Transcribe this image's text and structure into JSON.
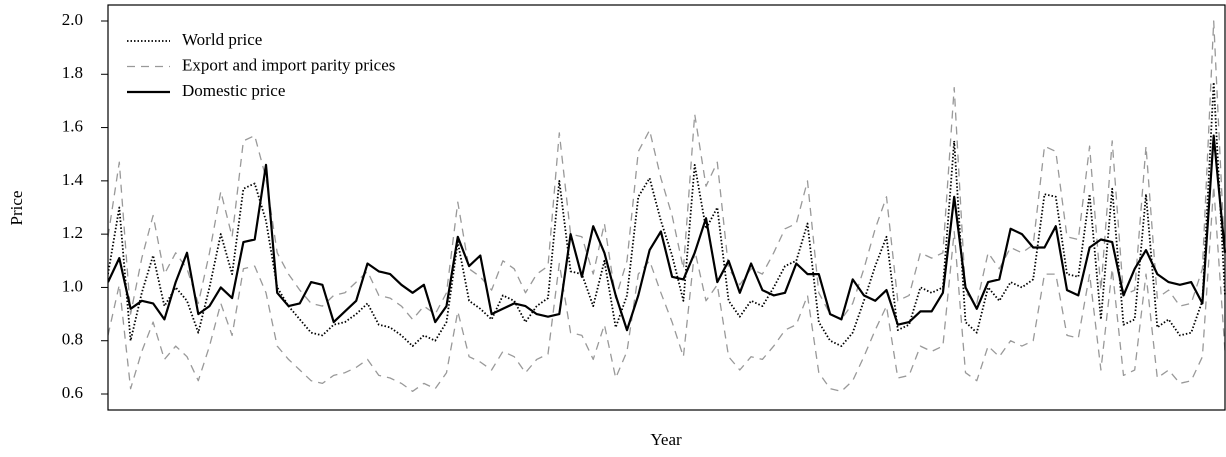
{
  "chart_data": {
    "type": "line",
    "y_label": "Price",
    "x_label": "Year",
    "ylim": [
      0.54,
      2.06
    ],
    "yticks": [
      0.6,
      0.8,
      {
        "value": 1,
        "label": "1.0"
      },
      1.2,
      1.4,
      1.6,
      1.8,
      {
        "value": 2,
        "label": "2.0"
      }
    ],
    "legend": "top-left",
    "categories": [
      null,
      null,
      null,
      null,
      null,
      null,
      null,
      null,
      null,
      null,
      null,
      null,
      null,
      null,
      null,
      null,
      null,
      null,
      null,
      null,
      null,
      null,
      null,
      null,
      null,
      null,
      null,
      null,
      null,
      null,
      null,
      null,
      null,
      null,
      null,
      null,
      null,
      null,
      null,
      null,
      null,
      null,
      null,
      null,
      null,
      null,
      null,
      null,
      null,
      null,
      null,
      null,
      null,
      null,
      null,
      null,
      null,
      null,
      null,
      null,
      null,
      null,
      null,
      null,
      null,
      null,
      null,
      null,
      null,
      null,
      null,
      null,
      null,
      null,
      null,
      null,
      null,
      null,
      null,
      null,
      null,
      null,
      null,
      null,
      null,
      null,
      null,
      null,
      null,
      null,
      null,
      null,
      null,
      null,
      null,
      null,
      null,
      null,
      null,
      null
    ],
    "series": [
      {
        "name": "World price",
        "color": "#000000",
        "dash": "dotted",
        "values": [
          1.05,
          1.3,
          0.8,
          0.98,
          1.12,
          0.93,
          1.0,
          0.95,
          0.83,
          1.0,
          1.2,
          1.05,
          1.37,
          1.39,
          1.25,
          1.0,
          0.93,
          0.88,
          0.83,
          0.82,
          0.86,
          0.87,
          0.9,
          0.94,
          0.86,
          0.85,
          0.82,
          0.78,
          0.82,
          0.8,
          0.87,
          1.17,
          0.95,
          0.92,
          0.88,
          0.97,
          0.95,
          0.87,
          0.93,
          0.96,
          1.4,
          1.06,
          1.05,
          0.93,
          1.1,
          0.85,
          0.97,
          1.34,
          1.41,
          1.25,
          1.12,
          0.95,
          1.46,
          1.22,
          1.3,
          0.95,
          0.89,
          0.95,
          0.93,
          1.0,
          1.08,
          1.1,
          1.24,
          0.87,
          0.8,
          0.78,
          0.83,
          0.95,
          1.08,
          1.19,
          0.84,
          0.86,
          1.0,
          0.98,
          1.0,
          1.55,
          0.87,
          0.83,
          1.0,
          0.95,
          1.02,
          1.0,
          1.03,
          1.35,
          1.34,
          1.05,
          1.04,
          1.35,
          0.88,
          1.37,
          0.86,
          0.88,
          1.35,
          0.85,
          0.88,
          0.82,
          0.83,
          0.95,
          1.77,
          0.97
        ]
      },
      {
        "name": "Export and import parity prices",
        "color": "#999999",
        "dash": "dashed",
        "values": [
          1.19,
          1.47,
          0.9,
          1.11,
          1.27,
          1.05,
          1.13,
          1.07,
          0.94,
          1.13,
          1.36,
          1.19,
          1.55,
          1.57,
          1.41,
          1.13,
          1.05,
          0.99,
          0.94,
          0.93,
          0.97,
          0.98,
          1.02,
          1.06,
          0.97,
          0.96,
          0.93,
          0.88,
          0.93,
          0.9,
          0.98,
          1.32,
          1.07,
          1.04,
          0.99,
          1.1,
          1.07,
          0.98,
          1.05,
          1.08,
          1.58,
          1.2,
          1.19,
          1.05,
          1.24,
          0.96,
          1.1,
          1.51,
          1.59,
          1.41,
          1.27,
          1.07,
          1.65,
          1.38,
          1.47,
          1.07,
          1.01,
          1.07,
          1.05,
          1.13,
          1.22,
          1.24,
          1.4,
          0.98,
          0.9,
          0.88,
          0.94,
          1.07,
          1.22,
          1.34,
          0.95,
          0.97,
          1.13,
          1.11,
          1.13,
          1.75,
          0.98,
          0.94,
          1.13,
          1.07,
          1.15,
          1.13,
          1.16,
          1.53,
          1.51,
          1.19,
          1.18,
          1.53,
          0.99,
          1.55,
          0.97,
          0.99,
          1.53,
          0.96,
          0.99,
          0.93,
          0.94,
          1.07,
          2.0,
          1.1
        ]
      },
      {
        "color": "#999999",
        "dash": "dashed",
        "values": [
          0.82,
          1.01,
          0.62,
          0.76,
          0.87,
          0.73,
          0.78,
          0.74,
          0.65,
          0.78,
          0.94,
          0.82,
          1.07,
          1.08,
          0.98,
          0.78,
          0.73,
          0.69,
          0.65,
          0.64,
          0.67,
          0.68,
          0.7,
          0.73,
          0.67,
          0.66,
          0.64,
          0.61,
          0.64,
          0.62,
          0.68,
          0.91,
          0.74,
          0.72,
          0.69,
          0.76,
          0.74,
          0.68,
          0.73,
          0.75,
          1.09,
          0.83,
          0.82,
          0.73,
          0.86,
          0.66,
          0.76,
          1.05,
          1.1,
          0.98,
          0.87,
          0.74,
          1.14,
          0.95,
          1.01,
          0.74,
          0.69,
          0.74,
          0.73,
          0.78,
          0.84,
          0.86,
          0.97,
          0.68,
          0.62,
          0.61,
          0.65,
          0.74,
          0.84,
          0.93,
          0.66,
          0.67,
          0.78,
          0.76,
          0.78,
          1.21,
          0.68,
          0.65,
          0.78,
          0.74,
          0.8,
          0.78,
          0.8,
          1.05,
          1.05,
          0.82,
          0.81,
          1.05,
          0.69,
          1.07,
          0.67,
          0.69,
          1.05,
          0.66,
          0.69,
          0.64,
          0.65,
          0.74,
          1.38,
          0.76
        ]
      },
      {
        "name": "Domestic price",
        "color": "#000000",
        "dash": "solid",
        "values": [
          1.02,
          1.11,
          0.92,
          0.95,
          0.94,
          0.88,
          1.02,
          1.13,
          0.9,
          0.93,
          1.0,
          0.96,
          1.17,
          1.18,
          1.46,
          0.98,
          0.93,
          0.94,
          1.02,
          1.01,
          0.87,
          0.91,
          0.95,
          1.09,
          1.06,
          1.05,
          1.01,
          0.98,
          1.01,
          0.87,
          0.93,
          1.19,
          1.08,
          1.12,
          0.9,
          0.92,
          0.94,
          0.93,
          0.9,
          0.89,
          0.9,
          1.2,
          1.04,
          1.23,
          1.13,
          0.97,
          0.84,
          0.97,
          1.14,
          1.21,
          1.04,
          1.03,
          1.13,
          1.26,
          1.02,
          1.1,
          0.98,
          1.09,
          0.99,
          0.97,
          0.98,
          1.09,
          1.05,
          1.05,
          0.9,
          0.88,
          1.03,
          0.97,
          0.95,
          0.99,
          0.86,
          0.87,
          0.91,
          0.91,
          0.98,
          1.34,
          1.0,
          0.92,
          1.02,
          1.03,
          1.22,
          1.2,
          1.15,
          1.15,
          1.23,
          0.99,
          0.97,
          1.15,
          1.18,
          1.17,
          0.97,
          1.07,
          1.14,
          1.05,
          1.02,
          1.01,
          1.02,
          0.94,
          1.57,
          1.13
        ]
      }
    ]
  }
}
